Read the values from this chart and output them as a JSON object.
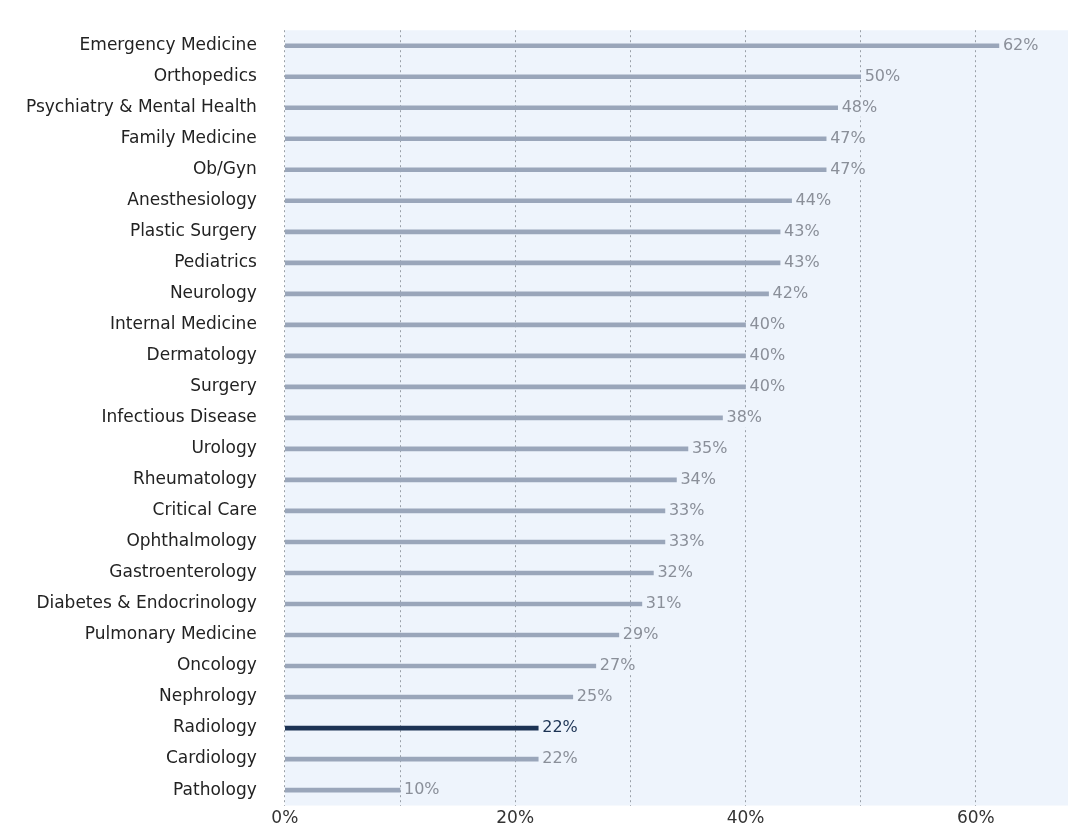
{
  "chart_data": {
    "type": "bar",
    "orientation": "horizontal",
    "categories": [
      "Emergency Medicine",
      "Orthopedics",
      "Psychiatry & Mental Health",
      "Family Medicine",
      "Ob/Gyn",
      "Anesthesiology",
      "Plastic Surgery",
      "Pediatrics",
      "Neurology",
      "Internal Medicine",
      "Dermatology",
      "Surgery",
      "Infectious Disease",
      "Urology",
      "Rheumatology",
      "Critical Care",
      "Ophthalmology",
      "Gastroenterology",
      "Diabetes & Endocrinology",
      "Pulmonary Medicine",
      "Oncology",
      "Nephrology",
      "Radiology",
      "Cardiology",
      "Pathology"
    ],
    "values": [
      62,
      50,
      48,
      47,
      47,
      44,
      43,
      43,
      42,
      40,
      40,
      40,
      38,
      35,
      34,
      33,
      33,
      32,
      31,
      29,
      27,
      25,
      22,
      22,
      10
    ],
    "value_labels": [
      "62%",
      "50%",
      "48%",
      "47%",
      "47%",
      "44%",
      "43%",
      "43%",
      "42%",
      "40%",
      "40%",
      "40%",
      "38%",
      "35%",
      "34%",
      "33%",
      "33%",
      "32%",
      "31%",
      "29%",
      "27%",
      "25%",
      "22%",
      "22%",
      "10%"
    ],
    "colors": [
      "#9aa6ba",
      "#9aa6ba",
      "#9aa6ba",
      "#9aa6ba",
      "#9aa6ba",
      "#9aa6ba",
      "#9aa6ba",
      "#9aa6ba",
      "#9aa6ba",
      "#9aa6ba",
      "#9aa6ba",
      "#9aa6ba",
      "#9aa6ba",
      "#9aa6ba",
      "#9aa6ba",
      "#9aa6ba",
      "#9aa6ba",
      "#9aa6ba",
      "#9aa6ba",
      "#9aa6ba",
      "#9aa6ba",
      "#9aa6ba",
      "#1c3354",
      "#9aa6ba",
      "#9aa6ba"
    ],
    "xlim": [
      0,
      68
    ],
    "xticks": [
      {
        "value": 0,
        "label": "0%"
      },
      {
        "value": 10,
        "label": null
      },
      {
        "value": 20,
        "label": "20%"
      },
      {
        "value": 30,
        "label": null
      },
      {
        "value": 40,
        "label": "40%"
      },
      {
        "value": 50,
        "label": null
      },
      {
        "value": 60,
        "label": "60%"
      }
    ],
    "grid": "x"
  }
}
